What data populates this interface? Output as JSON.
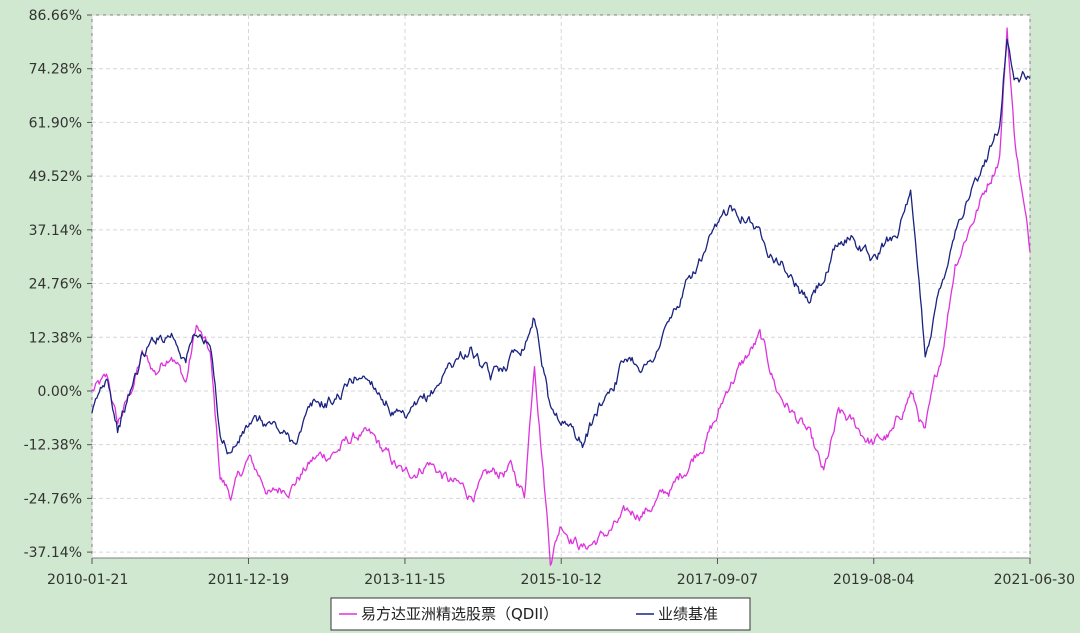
{
  "chart_data": {
    "type": "line",
    "title": "",
    "xlabel": "",
    "ylabel": "",
    "x_ticks": [
      "2010-01-21",
      "2011-12-19",
      "2013-11-15",
      "2015-10-12",
      "2017-09-07",
      "2019-08-04",
      "2021-06-30"
    ],
    "xlim": [
      "2010-01-21",
      "2021-06-30"
    ],
    "y_ticks": [
      "86.66%",
      "74.28%",
      "61.90%",
      "49.52%",
      "37.14%",
      "24.76%",
      "12.38%",
      "0.00%",
      "-12.38%",
      "-24.76%",
      "-37.14%"
    ],
    "ylim": [
      -38.5,
      86.66
    ],
    "grid": true,
    "legend_position": "bottom-center",
    "series": [
      {
        "name": "易方达亚洲精选股票（QDII）",
        "color": "#dd33dd",
        "x": [
          "2010-01-21",
          "2010-04-01",
          "2010-05-15",
          "2010-07-01",
          "2010-09-01",
          "2010-11-01",
          "2011-01-10",
          "2011-03-15",
          "2011-05-01",
          "2011-07-01",
          "2011-08-15",
          "2011-10-01",
          "2011-12-19",
          "2012-04-01",
          "2012-07-01",
          "2012-10-01",
          "2013-01-01",
          "2013-05-01",
          "2013-07-01",
          "2013-11-15",
          "2014-03-01",
          "2014-06-01",
          "2014-09-01",
          "2014-12-01",
          "2015-03-01",
          "2015-05-01",
          "2015-06-15",
          "2015-08-25",
          "2015-10-12",
          "2016-01-20",
          "2016-05-01",
          "2016-08-01",
          "2016-11-01",
          "2017-03-01",
          "2017-06-01",
          "2017-09-07",
          "2017-11-01",
          "2018-01-20",
          "2018-03-15",
          "2018-06-01",
          "2018-10-15",
          "2018-12-24",
          "2019-03-01",
          "2019-05-01",
          "2019-08-04",
          "2019-11-01",
          "2020-01-15",
          "2020-03-20",
          "2020-06-01",
          "2020-08-01",
          "2020-10-01",
          "2020-12-01",
          "2021-02-15",
          "2021-03-20",
          "2021-04-20",
          "2021-06-30"
        ],
        "y": [
          0.0,
          2.0,
          -8.0,
          -2.0,
          8.0,
          4.0,
          10.0,
          2.0,
          15.0,
          8.0,
          -20.0,
          -24.0,
          -16.0,
          -24.0,
          -21.0,
          -16.0,
          -14.0,
          -10.0,
          -12.0,
          -20.0,
          -16.0,
          -21.0,
          -24.0,
          -20.0,
          -18.0,
          -24.0,
          8.0,
          -38.0,
          -30.0,
          -36.0,
          -33.0,
          -29.0,
          -27.0,
          -22.0,
          -14.0,
          -6.0,
          2.0,
          8.0,
          12.0,
          0.0,
          -10.0,
          -20.0,
          -6.0,
          -8.0,
          -12.0,
          -10.0,
          0.0,
          -10.0,
          8.0,
          30.0,
          38.0,
          45.0,
          55.0,
          84.0,
          60.0,
          32.0
        ]
      },
      {
        "name": "业绩基准",
        "color": "#1a237e",
        "x": [
          "2010-01-21",
          "2010-04-01",
          "2010-05-15",
          "2010-07-01",
          "2010-09-01",
          "2010-11-01",
          "2011-01-10",
          "2011-03-15",
          "2011-05-01",
          "2011-07-01",
          "2011-08-15",
          "2011-10-01",
          "2011-12-19",
          "2012-04-01",
          "2012-07-01",
          "2012-10-01",
          "2013-01-01",
          "2013-05-01",
          "2013-07-01",
          "2013-11-15",
          "2014-03-01",
          "2014-06-01",
          "2014-09-01",
          "2014-12-01",
          "2015-03-01",
          "2015-05-01",
          "2015-06-15",
          "2015-08-25",
          "2015-10-12",
          "2016-01-20",
          "2016-05-01",
          "2016-08-01",
          "2016-11-01",
          "2017-03-01",
          "2017-06-01",
          "2017-09-07",
          "2017-11-01",
          "2018-01-20",
          "2018-03-15",
          "2018-06-01",
          "2018-10-15",
          "2018-12-24",
          "2019-03-01",
          "2019-05-01",
          "2019-08-04",
          "2019-11-01",
          "2020-01-15",
          "2020-03-20",
          "2020-06-01",
          "2020-08-01",
          "2020-10-01",
          "2020-12-01",
          "2021-02-15",
          "2021-03-20",
          "2021-04-20",
          "2021-06-30"
        ],
        "y": [
          -6.0,
          4.0,
          -8.0,
          -2.0,
          8.0,
          12.0,
          14.0,
          8.0,
          14.0,
          10.0,
          -10.0,
          -14.0,
          -8.0,
          -8.0,
          -12.0,
          -4.0,
          -2.0,
          4.0,
          2.0,
          -8.0,
          -2.0,
          6.0,
          10.0,
          2.0,
          8.0,
          12.0,
          18.0,
          -4.0,
          -6.0,
          -12.0,
          0.0,
          8.0,
          6.0,
          18.0,
          28.0,
          36.0,
          42.0,
          42.0,
          36.0,
          32.0,
          20.0,
          26.0,
          33.0,
          36.0,
          30.0,
          36.0,
          44.0,
          8.0,
          25.0,
          38.0,
          46.0,
          50.0,
          62.0,
          83.0,
          72.0,
          72.0
        ]
      }
    ]
  }
}
